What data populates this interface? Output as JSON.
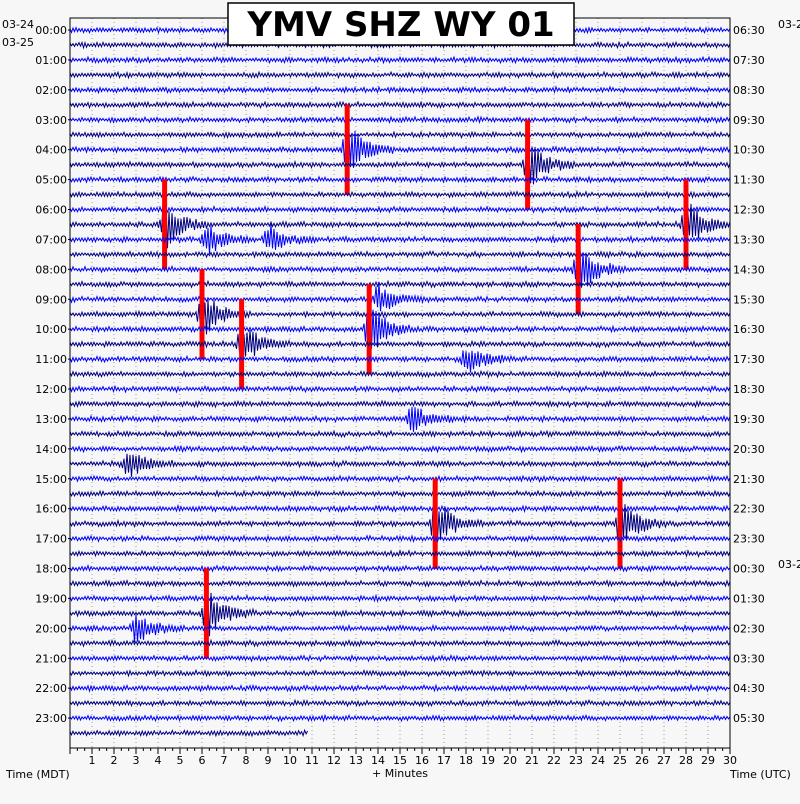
{
  "chart_data": {
    "type": "line",
    "title": "YMV SHZ WY 01",
    "xlabel": "+ Minutes",
    "left_axis_label": "Time (MDT)",
    "right_axis_label": "Time (UTC)",
    "left_date_top": "03-24",
    "left_date_start": "03-25",
    "right_date_top": "03-2",
    "right_date_mid": "03-2",
    "x_ticks": [
      "1",
      "2",
      "3",
      "4",
      "5",
      "6",
      "7",
      "8",
      "9",
      "10",
      "11",
      "12",
      "13",
      "14",
      "15",
      "16",
      "17",
      "18",
      "19",
      "20",
      "21",
      "22",
      "23",
      "24",
      "25",
      "26",
      "27",
      "28",
      "29",
      "30"
    ],
    "left_hour_labels": [
      "00:00",
      "01:00",
      "02:00",
      "03:00",
      "04:00",
      "05:00",
      "06:00",
      "07:00",
      "08:00",
      "09:00",
      "10:00",
      "11:00",
      "12:00",
      "13:00",
      "14:00",
      "15:00",
      "16:00",
      "17:00",
      "18:00",
      "19:00",
      "20:00",
      "21:00",
      "22:00",
      "23:00"
    ],
    "right_hour_labels": [
      "06:30",
      "07:30",
      "08:30",
      "09:30",
      "10:30",
      "11:30",
      "12:30",
      "13:30",
      "14:30",
      "15:30",
      "16:30",
      "17:30",
      "18:30",
      "19:30",
      "20:30",
      "21:30",
      "22:30",
      "23:30",
      "00:30",
      "01:30",
      "02:30",
      "03:30",
      "04:30",
      "05:30"
    ],
    "traces_per_hour": 2,
    "minutes_per_trace": 30,
    "last_trace_minutes": 10.8,
    "trace_colors": [
      "#0000ff",
      "#000080"
    ],
    "clip_color": "#ff0000",
    "grid": true,
    "events": [
      {
        "hour": "04:00",
        "minute": 12.6,
        "amplitude": "clipped"
      },
      {
        "hour": "04:30",
        "minute": 20.8,
        "amplitude": "clipped"
      },
      {
        "hour": "06:30",
        "minute": 4.3,
        "amplitude": "clipped"
      },
      {
        "hour": "07:00",
        "minute": 6.2,
        "amplitude": "large"
      },
      {
        "hour": "07:00",
        "minute": 9.0,
        "amplitude": "large"
      },
      {
        "hour": "06:30",
        "minute": 28.0,
        "amplitude": "clipped"
      },
      {
        "hour": "08:00",
        "minute": 23.1,
        "amplitude": "clipped"
      },
      {
        "hour": "09:00",
        "minute": 14.0,
        "amplitude": "large"
      },
      {
        "hour": "09:30",
        "minute": 6.0,
        "amplitude": "clipped"
      },
      {
        "hour": "10:00",
        "minute": 13.6,
        "amplitude": "clipped"
      },
      {
        "hour": "10:30",
        "minute": 7.8,
        "amplitude": "clipped"
      },
      {
        "hour": "11:00",
        "minute": 18.0,
        "amplitude": "large"
      },
      {
        "hour": "13:00",
        "minute": 15.5,
        "amplitude": "large"
      },
      {
        "hour": "14:30",
        "minute": 2.6,
        "amplitude": "large"
      },
      {
        "hour": "16:30",
        "minute": 16.6,
        "amplitude": "clipped"
      },
      {
        "hour": "16:30",
        "minute": 25.0,
        "amplitude": "clipped"
      },
      {
        "hour": "20:00",
        "minute": 3.0,
        "amplitude": "large"
      },
      {
        "hour": "19:30",
        "minute": 6.2,
        "amplitude": "clipped"
      }
    ]
  }
}
